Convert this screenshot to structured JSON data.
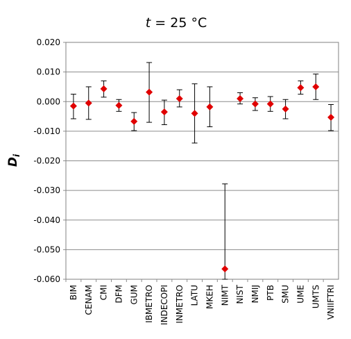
{
  "chart_data": {
    "type": "scatter",
    "title_var": "t",
    "title_rest": " = 25 °C",
    "ylabel_main": "D",
    "ylabel_sub": "i",
    "xlabel": "",
    "ylim": [
      -0.06,
      0.02
    ],
    "yticks": [
      0.02,
      0.01,
      0.0,
      -0.01,
      -0.02,
      -0.03,
      -0.04,
      -0.05,
      -0.06
    ],
    "ytick_labels": [
      "0.020",
      "0.010",
      "0.000",
      "-0.010",
      "-0.020",
      "-0.030",
      "-0.040",
      "-0.050",
      "-0.060"
    ],
    "grid": "horizontal",
    "legend": "none",
    "marker_color": "#e00000",
    "categories": [
      "BIM",
      "CENAM",
      "CMI",
      "DFM",
      "GUM",
      "IBMETRO",
      "INDECOPI",
      "INMETRO",
      "LATU",
      "MKEH",
      "NIMT",
      "NIST",
      "NMIJ",
      "PTB",
      "SMU",
      "UME",
      "UMTS",
      "VNIIFTRI"
    ],
    "series": [
      {
        "values": [
          -0.0015,
          -0.0005,
          0.0043,
          -0.0013,
          -0.0067,
          0.0032,
          -0.0035,
          0.001,
          -0.004,
          -0.0018,
          -0.0565,
          0.001,
          -0.0008,
          -0.0008,
          -0.0025,
          0.0047,
          0.005,
          -0.0053
        ],
        "err_low": [
          -0.0058,
          -0.006,
          0.0015,
          -0.0033,
          -0.0098,
          -0.007,
          -0.0078,
          -0.0018,
          -0.014,
          -0.0085,
          -0.06,
          -0.0008,
          -0.003,
          -0.0033,
          -0.0058,
          0.0025,
          0.0007,
          -0.0098
        ],
        "err_high": [
          0.0025,
          0.005,
          0.007,
          0.0007,
          -0.0037,
          0.0132,
          0.0005,
          0.004,
          0.006,
          0.005,
          -0.0278,
          0.003,
          0.0013,
          0.0017,
          0.0007,
          0.007,
          0.0093,
          -0.001
        ]
      }
    ]
  }
}
